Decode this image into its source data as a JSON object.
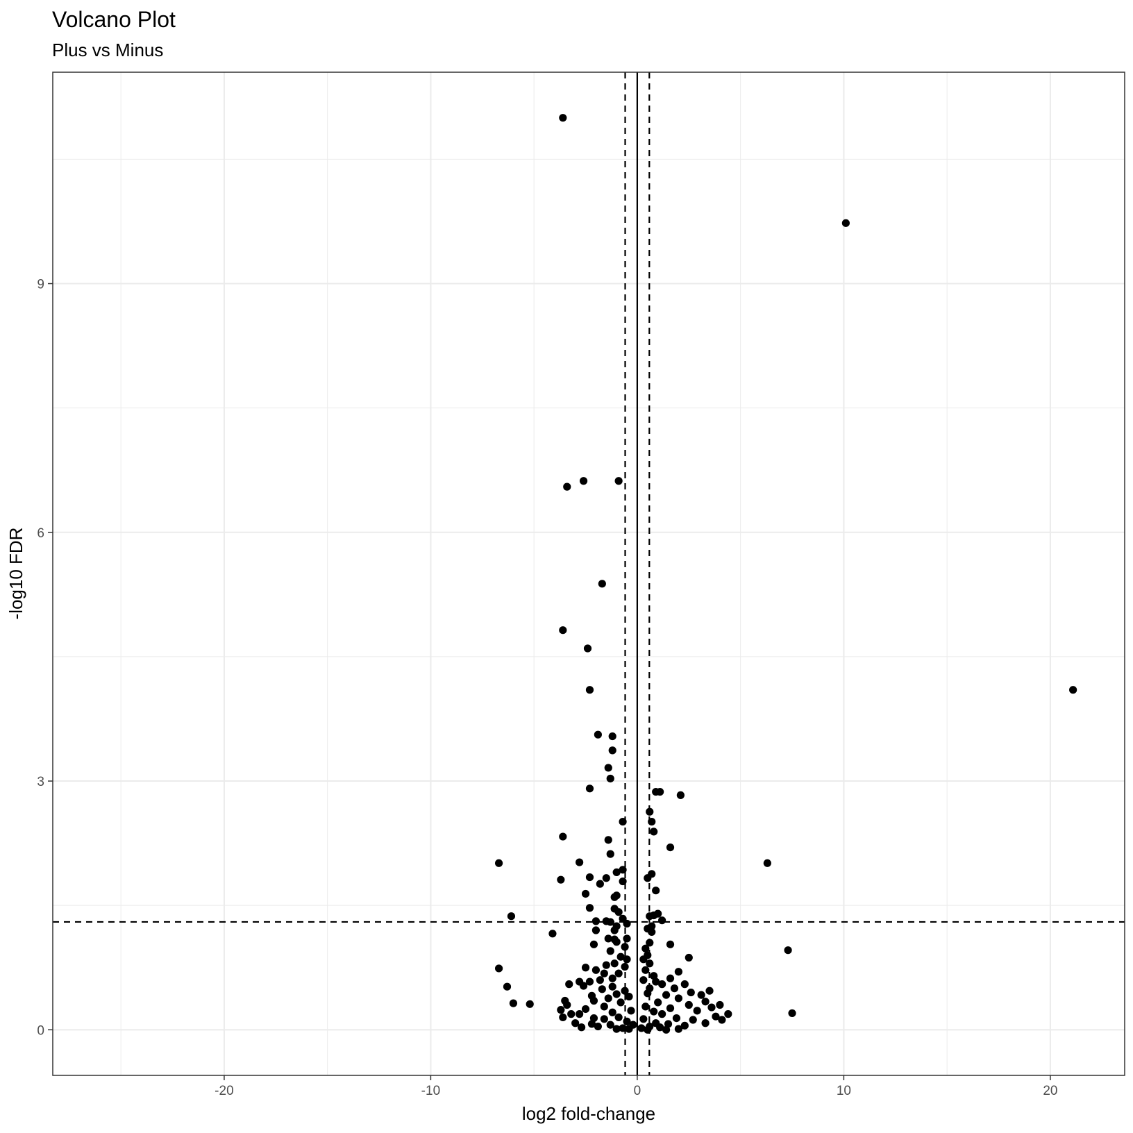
{
  "chart_data": {
    "type": "scatter",
    "title": "Volcano Plot",
    "subtitle": "Plus vs Minus",
    "xlabel": "log2 fold-change",
    "ylabel": "-log10 FDR",
    "xlim": [
      -28.3,
      23.6
    ],
    "ylim": [
      -0.55,
      11.55
    ],
    "xticks": [
      -20,
      -10,
      0,
      10,
      20
    ],
    "yticks": [
      0,
      3,
      6,
      9
    ],
    "xtick_labels": [
      "-20",
      "-10",
      "0",
      "10",
      "20"
    ],
    "ytick_labels": [
      "0",
      "3",
      "6",
      "9"
    ],
    "grid": true,
    "point_color": "#000000",
    "reference_lines": {
      "vertical_solid": 0,
      "vertical_dashed": [
        -0.585,
        0.585
      ],
      "horizontal_dashed": 1.301
    },
    "points": [
      [
        -3.6,
        11.0
      ],
      [
        10.1,
        9.73
      ],
      [
        21.1,
        4.1
      ],
      [
        -0.9,
        6.62
      ],
      [
        -2.6,
        6.62
      ],
      [
        -3.4,
        6.55
      ],
      [
        -1.7,
        5.38
      ],
      [
        -3.6,
        4.82
      ],
      [
        -2.4,
        4.6
      ],
      [
        -2.3,
        4.1
      ],
      [
        -1.9,
        3.56
      ],
      [
        -1.2,
        3.54
      ],
      [
        -1.2,
        3.37
      ],
      [
        -1.4,
        3.16
      ],
      [
        -1.3,
        3.03
      ],
      [
        -2.3,
        2.91
      ],
      [
        0.9,
        2.87
      ],
      [
        1.1,
        2.87
      ],
      [
        2.1,
        2.83
      ],
      [
        0.6,
        2.63
      ],
      [
        -0.7,
        2.51
      ],
      [
        0.7,
        2.51
      ],
      [
        0.8,
        2.39
      ],
      [
        -3.6,
        2.33
      ],
      [
        -1.4,
        2.29
      ],
      [
        1.6,
        2.2
      ],
      [
        -1.3,
        2.12
      ],
      [
        -6.7,
        2.01
      ],
      [
        6.3,
        2.01
      ],
      [
        -2.8,
        2.02
      ],
      [
        -0.7,
        1.93
      ],
      [
        -1.0,
        1.9
      ],
      [
        0.7,
        1.88
      ],
      [
        -2.3,
        1.84
      ],
      [
        -1.5,
        1.83
      ],
      [
        0.5,
        1.83
      ],
      [
        -3.7,
        1.81
      ],
      [
        -0.7,
        1.79
      ],
      [
        -1.8,
        1.76
      ],
      [
        0.9,
        1.68
      ],
      [
        -2.5,
        1.64
      ],
      [
        -1.0,
        1.62
      ],
      [
        -1.1,
        1.6
      ],
      [
        -1.1,
        1.46
      ],
      [
        -2.3,
        1.47
      ],
      [
        -0.9,
        1.42
      ],
      [
        1.0,
        1.4
      ],
      [
        0.6,
        1.37
      ],
      [
        0.8,
        1.38
      ],
      [
        -6.1,
        1.37
      ],
      [
        -0.7,
        1.34
      ],
      [
        1.2,
        1.32
      ],
      [
        -2.0,
        1.31
      ],
      [
        -1.5,
        1.31
      ],
      [
        -1.3,
        1.3
      ],
      [
        -0.5,
        1.28
      ],
      [
        0.7,
        1.25
      ],
      [
        0.5,
        1.22
      ],
      [
        -1.0,
        1.25
      ],
      [
        -1.1,
        1.2
      ],
      [
        -2.0,
        1.2
      ],
      [
        0.7,
        1.18
      ],
      [
        -4.1,
        1.16
      ],
      [
        -1.4,
        1.1
      ],
      [
        -1.1,
        1.09
      ],
      [
        -0.5,
        1.1
      ],
      [
        -1.0,
        1.06
      ],
      [
        0.6,
        1.05
      ],
      [
        -2.1,
        1.03
      ],
      [
        -0.6,
        1.0
      ],
      [
        1.6,
        1.03
      ],
      [
        0.4,
        0.98
      ],
      [
        7.3,
        0.96
      ],
      [
        -1.3,
        0.95
      ],
      [
        -0.8,
        0.88
      ],
      [
        0.5,
        0.9
      ],
      [
        -0.5,
        0.85
      ],
      [
        2.5,
        0.87
      ],
      [
        0.3,
        0.85
      ],
      [
        -1.1,
        0.8
      ],
      [
        0.6,
        0.8
      ],
      [
        -2.5,
        0.75
      ],
      [
        -1.5,
        0.78
      ],
      [
        -0.6,
        0.76
      ],
      [
        0.4,
        0.72
      ],
      [
        2.0,
        0.7
      ],
      [
        -2.0,
        0.72
      ],
      [
        -6.7,
        0.74
      ],
      [
        -1.6,
        0.68
      ],
      [
        -0.9,
        0.68
      ],
      [
        0.8,
        0.65
      ],
      [
        -1.2,
        0.62
      ],
      [
        0.3,
        0.6
      ],
      [
        1.6,
        0.62
      ],
      [
        -2.3,
        0.58
      ],
      [
        -1.8,
        0.6
      ],
      [
        0.9,
        0.58
      ],
      [
        -2.8,
        0.58
      ],
      [
        -3.3,
        0.55
      ],
      [
        1.2,
        0.55
      ],
      [
        2.3,
        0.55
      ],
      [
        -2.6,
        0.53
      ],
      [
        -6.3,
        0.52
      ],
      [
        -1.2,
        0.52
      ],
      [
        0.6,
        0.5
      ],
      [
        -1.7,
        0.49
      ],
      [
        1.8,
        0.5
      ],
      [
        -0.6,
        0.47
      ],
      [
        3.5,
        0.47
      ],
      [
        2.6,
        0.45
      ],
      [
        -1.0,
        0.43
      ],
      [
        0.5,
        0.44
      ],
      [
        1.4,
        0.42
      ],
      [
        -2.2,
        0.41
      ],
      [
        3.1,
        0.42
      ],
      [
        -0.4,
        0.4
      ],
      [
        -1.4,
        0.38
      ],
      [
        2.0,
        0.38
      ],
      [
        -3.5,
        0.35
      ],
      [
        -2.1,
        0.35
      ],
      [
        3.3,
        0.34
      ],
      [
        -0.8,
        0.33
      ],
      [
        1.0,
        0.33
      ],
      [
        -6.0,
        0.32
      ],
      [
        -5.2,
        0.31
      ],
      [
        4.0,
        0.3
      ],
      [
        -3.4,
        0.3
      ],
      [
        2.5,
        0.3
      ],
      [
        -1.6,
        0.28
      ],
      [
        0.4,
        0.28
      ],
      [
        3.6,
        0.27
      ],
      [
        1.6,
        0.26
      ],
      [
        -2.5,
        0.25
      ],
      [
        -3.7,
        0.24
      ],
      [
        -0.3,
        0.23
      ],
      [
        2.9,
        0.23
      ],
      [
        0.8,
        0.22
      ],
      [
        -1.2,
        0.21
      ],
      [
        7.5,
        0.2
      ],
      [
        4.4,
        0.19
      ],
      [
        -3.2,
        0.19
      ],
      [
        -2.8,
        0.19
      ],
      [
        1.2,
        0.19
      ],
      [
        3.8,
        0.16
      ],
      [
        -3.6,
        0.15
      ],
      [
        -0.9,
        0.15
      ],
      [
        -2.1,
        0.14
      ],
      [
        1.9,
        0.14
      ],
      [
        -1.6,
        0.13
      ],
      [
        0.3,
        0.13
      ],
      [
        4.1,
        0.12
      ],
      [
        2.7,
        0.12
      ],
      [
        -3.0,
        0.08
      ],
      [
        -0.5,
        0.1
      ],
      [
        3.3,
        0.08
      ],
      [
        0.9,
        0.08
      ],
      [
        -2.2,
        0.07
      ],
      [
        1.5,
        0.07
      ],
      [
        -1.3,
        0.06
      ],
      [
        -0.2,
        0.06
      ],
      [
        2.3,
        0.05
      ],
      [
        -2.7,
        0.03
      ],
      [
        -1.9,
        0.04
      ],
      [
        0.6,
        0.04
      ],
      [
        1.1,
        0.03
      ],
      [
        -0.7,
        0.02
      ],
      [
        0.2,
        0.02
      ],
      [
        -1.0,
        0.01
      ],
      [
        2.0,
        0.01
      ],
      [
        -0.4,
        0.01
      ],
      [
        0.5,
        0.0
      ],
      [
        1.4,
        0.0
      ]
    ]
  }
}
